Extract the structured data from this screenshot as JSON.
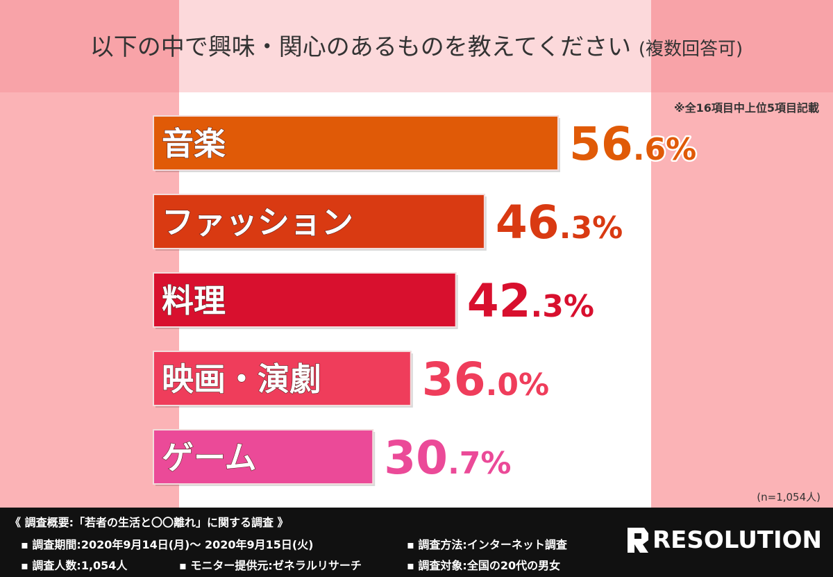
{
  "title": "以下の中で興味・関心のあるものを教えてください",
  "title_qualifier": "(複数回答可)",
  "note": "※全16項目中上位5項目記載",
  "sample_size": "(n=1,054人)",
  "chart_data": {
    "type": "bar",
    "orientation": "horizontal",
    "categories": [
      "音楽",
      "ファッション",
      "料理",
      "映画・演劇",
      "ゲーム"
    ],
    "values": [
      56.6,
      46.3,
      42.3,
      36.0,
      30.7
    ],
    "value_labels": [
      {
        "main": "56",
        "decimal": ".6%"
      },
      {
        "main": "46",
        "decimal": ".3%"
      },
      {
        "main": "42",
        "decimal": ".3%"
      },
      {
        "main": "36",
        "decimal": ".0%"
      },
      {
        "main": "30",
        "decimal": ".7%"
      }
    ],
    "colors": [
      "#e05a07",
      "#d93a12",
      "#d8102e",
      "#ef3d5b",
      "#eb4a98"
    ],
    "unit": "%",
    "xlim": [
      0,
      100
    ],
    "grid": false,
    "legend": "none"
  },
  "footer": {
    "summary": "《 調査概要:「若者の生活と〇〇離れ」に関する調査 》",
    "period": "▪ 調査期間:2020年9月14日(月)〜 2020年9月15日(火)",
    "method": "▪ 調査方法:インターネット調査",
    "respondents": "▪ 調査人数:1,054人",
    "provider": "▪ モニター提供元:ゼネラルリサーチ",
    "target": "▪ 調査対象:全国の20代の男女",
    "logo_text": "RESOLUTION",
    "logo_icon": "r-mark-icon"
  }
}
